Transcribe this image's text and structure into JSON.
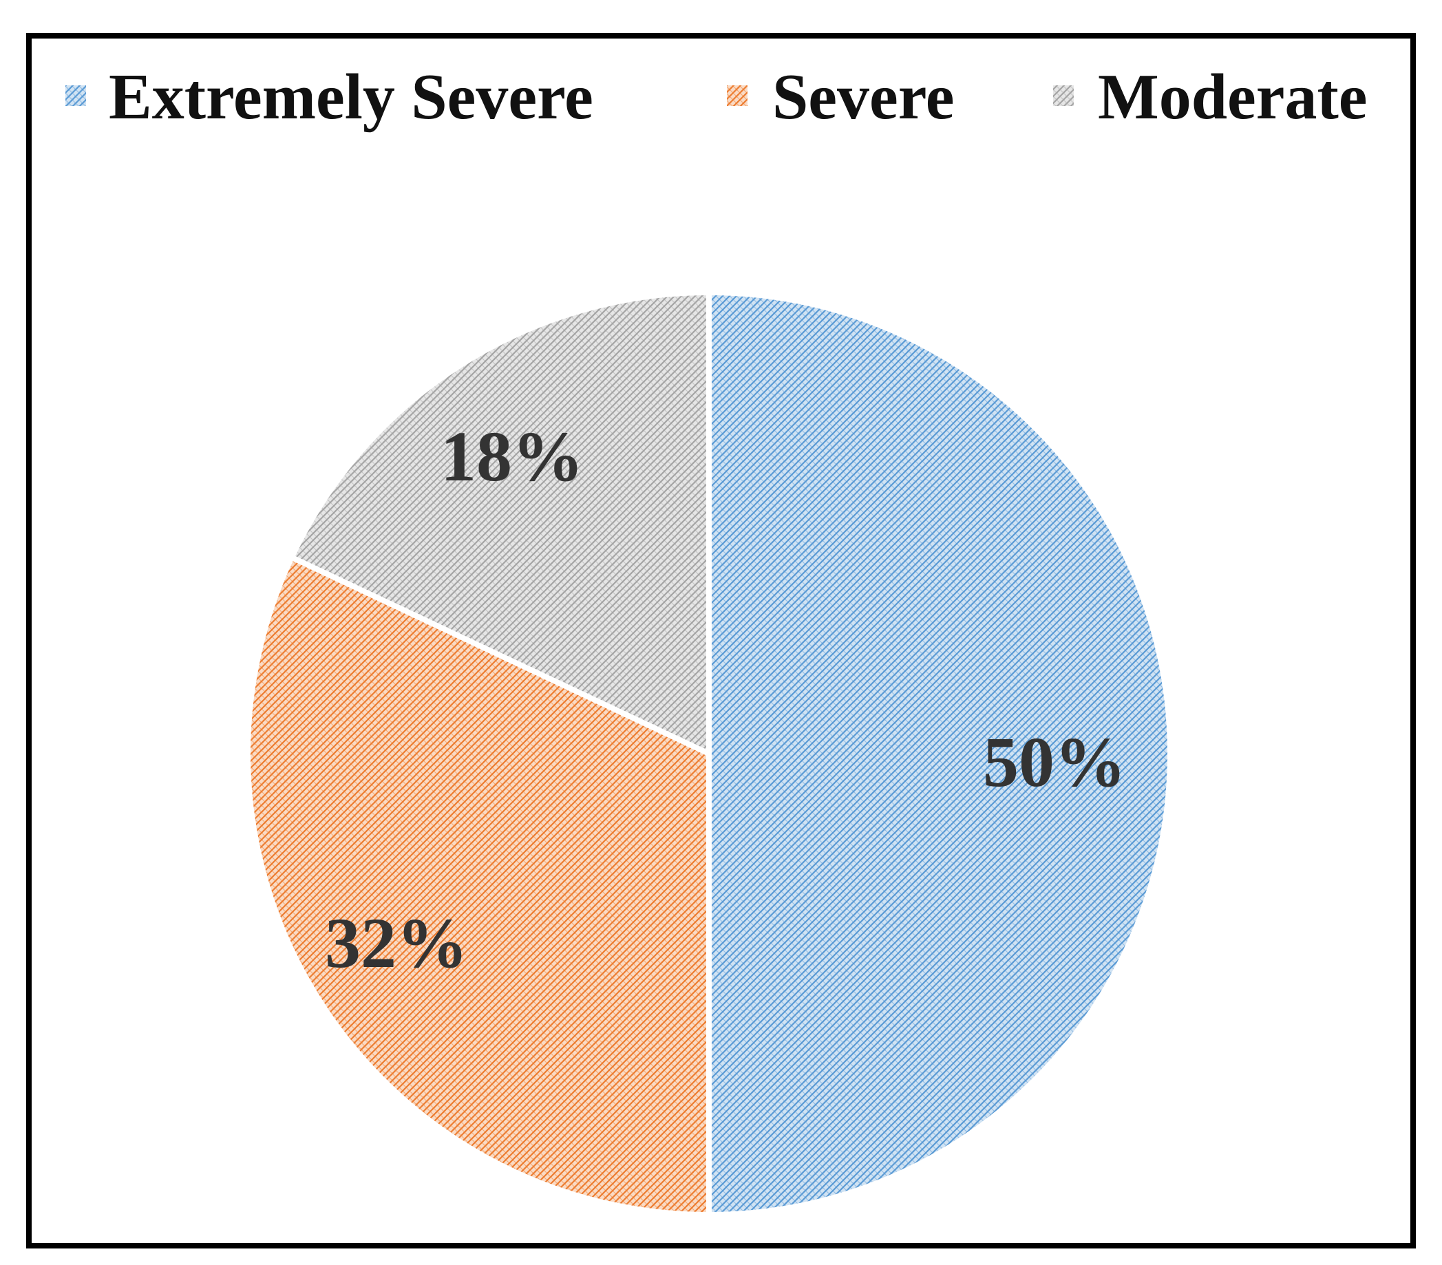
{
  "chart_data": {
    "type": "pie",
    "title": "",
    "legend": {
      "position": "top",
      "entries": [
        {
          "name": "Extremely Severe",
          "color": "#5B9BD5"
        },
        {
          "name": "Severe",
          "color": "#ED7D31"
        },
        {
          "name": "Moderate",
          "color": "#A5A5A5"
        }
      ]
    },
    "slices": [
      {
        "name": "Extremely Severe",
        "value": 50,
        "label": "50%",
        "color": "#5B9BD5",
        "fill_pattern": "diagonal-crosshatch"
      },
      {
        "name": "Severe",
        "value": 32,
        "label": "32%",
        "color": "#ED7D31",
        "fill_pattern": "diagonal-crosshatch"
      },
      {
        "name": "Moderate",
        "value": 18,
        "label": "18%",
        "color": "#A5A5A5",
        "fill_pattern": "diagonal-crosshatch"
      }
    ],
    "start_angle_deg": 0,
    "direction": "clockwise"
  }
}
